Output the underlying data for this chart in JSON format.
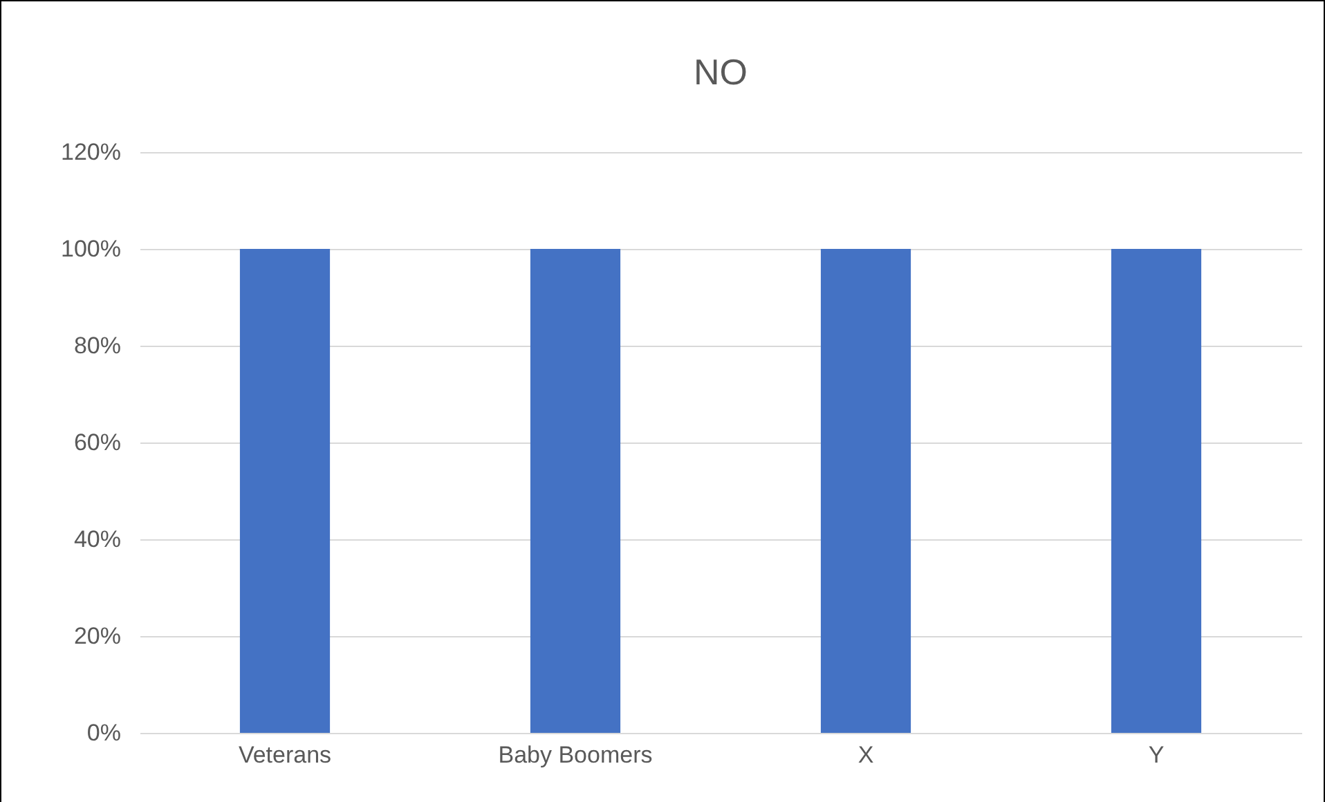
{
  "chart_data": {
    "type": "bar",
    "title": "NO",
    "categories": [
      "Veterans",
      "Baby Boomers",
      "X",
      "Y"
    ],
    "values": [
      100,
      100,
      100,
      100
    ],
    "color": "#4472c4",
    "ylim": [
      0,
      120
    ],
    "yticks": [
      {
        "value": 0,
        "label": "0%"
      },
      {
        "value": 20,
        "label": "20%"
      },
      {
        "value": 40,
        "label": "40%"
      },
      {
        "value": 60,
        "label": "60%"
      },
      {
        "value": 80,
        "label": "80%"
      },
      {
        "value": 100,
        "label": "100%"
      },
      {
        "value": 120,
        "label": "120%"
      }
    ],
    "grid": "y"
  }
}
